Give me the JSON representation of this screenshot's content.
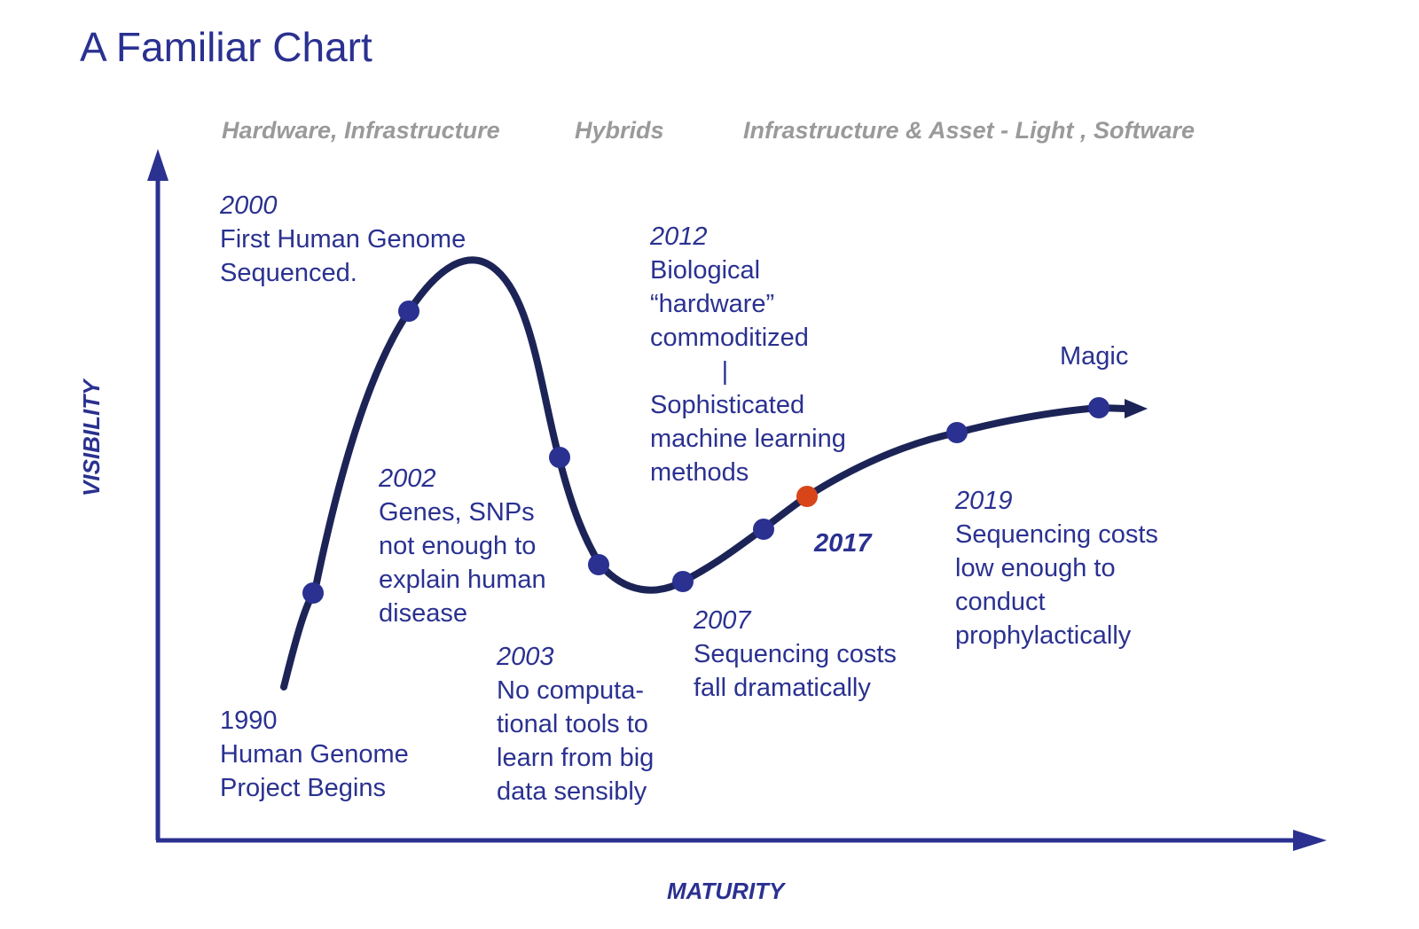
{
  "title": "A Familiar Chart",
  "phases": [
    "Hardware, Infrastructure",
    "Hybrids",
    "Infrastructure & Asset - Light , Software"
  ],
  "axes": {
    "y": "VISIBILITY",
    "x": "MATURITY"
  },
  "annotations": {
    "a1990": {
      "year": "1990",
      "text": "Human Genome\nProject Begins"
    },
    "a2000": {
      "year": "2000",
      "text": "First Human Genome\nSequenced."
    },
    "a2002": {
      "year": "2002",
      "text": "Genes, SNPs\nnot enough to\nexplain human\ndisease"
    },
    "a2003": {
      "year": "2003",
      "text": "No computa-\ntional tools to\nlearn from big\ndata sensibly"
    },
    "a2007": {
      "year": "2007",
      "text": "Sequencing costs\nfall dramatically"
    },
    "a2012": {
      "year": "2012",
      "text": "Biological\n“hardware”\ncommoditized\n          |\nSophisticated\nmachine learning\nmethods"
    },
    "a2017": {
      "year": "2017"
    },
    "a2019": {
      "year": "2019",
      "text": "Sequencing costs\nlow enough to\nconduct\nprophylactically"
    },
    "magic": {
      "text": "Magic"
    }
  },
  "colors": {
    "primary": "#2a3190",
    "curve": "#1c2457",
    "highlight": "#d84519",
    "phase": "#9a9a9a"
  }
}
